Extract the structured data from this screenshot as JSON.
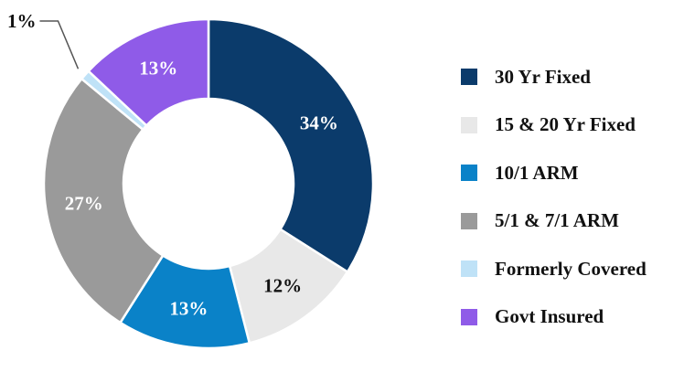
{
  "chart_data": {
    "type": "pie",
    "variant": "donut",
    "categories": [
      "30 Yr Fixed",
      "15 & 20 Yr Fixed",
      "10/1 ARM",
      "5/1 & 7/1 ARM",
      "Formerly Covered",
      "Govt Insured"
    ],
    "values": [
      34,
      12,
      13,
      27,
      1,
      13
    ],
    "labels": [
      "34%",
      "12%",
      "13%",
      "27%",
      "1%",
      "13%"
    ],
    "colors": [
      "#0b3b6b",
      "#e8e8e8",
      "#0a82c8",
      "#9a9a9a",
      "#bfe2f7",
      "#8f5be8"
    ],
    "label_colors": [
      "#ffffff",
      "#111111",
      "#ffffff",
      "#ffffff",
      "#111111",
      "#ffffff"
    ],
    "legend_position": "right",
    "start_angle_deg": 0,
    "direction": "clockwise"
  }
}
